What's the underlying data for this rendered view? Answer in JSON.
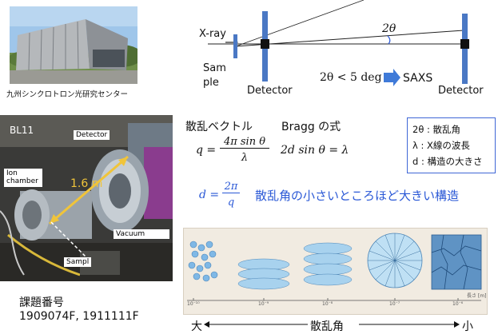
{
  "photo_caption": "九州シンクロトロン光研究センター",
  "beamline": {
    "name": "BL11",
    "detector_label": "Detector",
    "ion_chamber_label": "Ion chamber",
    "length_label": "1.6 m",
    "vacuum_label": "Vacuum",
    "sample_label": "Sampl"
  },
  "geometry": {
    "xray_label": "X-ray",
    "sample_label": "Sample",
    "detector_left_label": "Detector",
    "detector_right_label": "Detector",
    "angle_label": "2θ",
    "condition": "2θ < 5 deg",
    "saxs_label": "SAXS"
  },
  "formulas": {
    "scattering_vector_title": "散乱ベクトル",
    "bragg_title": "Bragg の式",
    "q_lhs": "q =",
    "q_num": "4π sin θ",
    "q_den": "λ",
    "bragg_eq": "2d sin θ = λ",
    "d_lhs": "d =",
    "d_num": "2π",
    "d_den": "q",
    "d_note": "散乱角の小さいところほど大きい構造"
  },
  "legend": {
    "items": [
      "2θ : 散乱角",
      "λ : X線の波長",
      "d : 構造の大きさ"
    ]
  },
  "scale": {
    "ticks": [
      "10⁻¹⁰",
      "10⁻⁹",
      "10⁻⁸",
      "10⁻⁷",
      "10⁻⁶"
    ],
    "axis_title": "長さ [m]",
    "left_label": "大",
    "center_label": "散乱角",
    "right_label": "小"
  },
  "project": {
    "title": "課題番号",
    "numbers": "1909074F, 1911111F"
  },
  "colors": {
    "accent_blue": "#2a58d6",
    "detector_blue": "#4a78c4",
    "arrow_blue": "#3f7ad8",
    "length_yellow": "#f0c43a"
  }
}
